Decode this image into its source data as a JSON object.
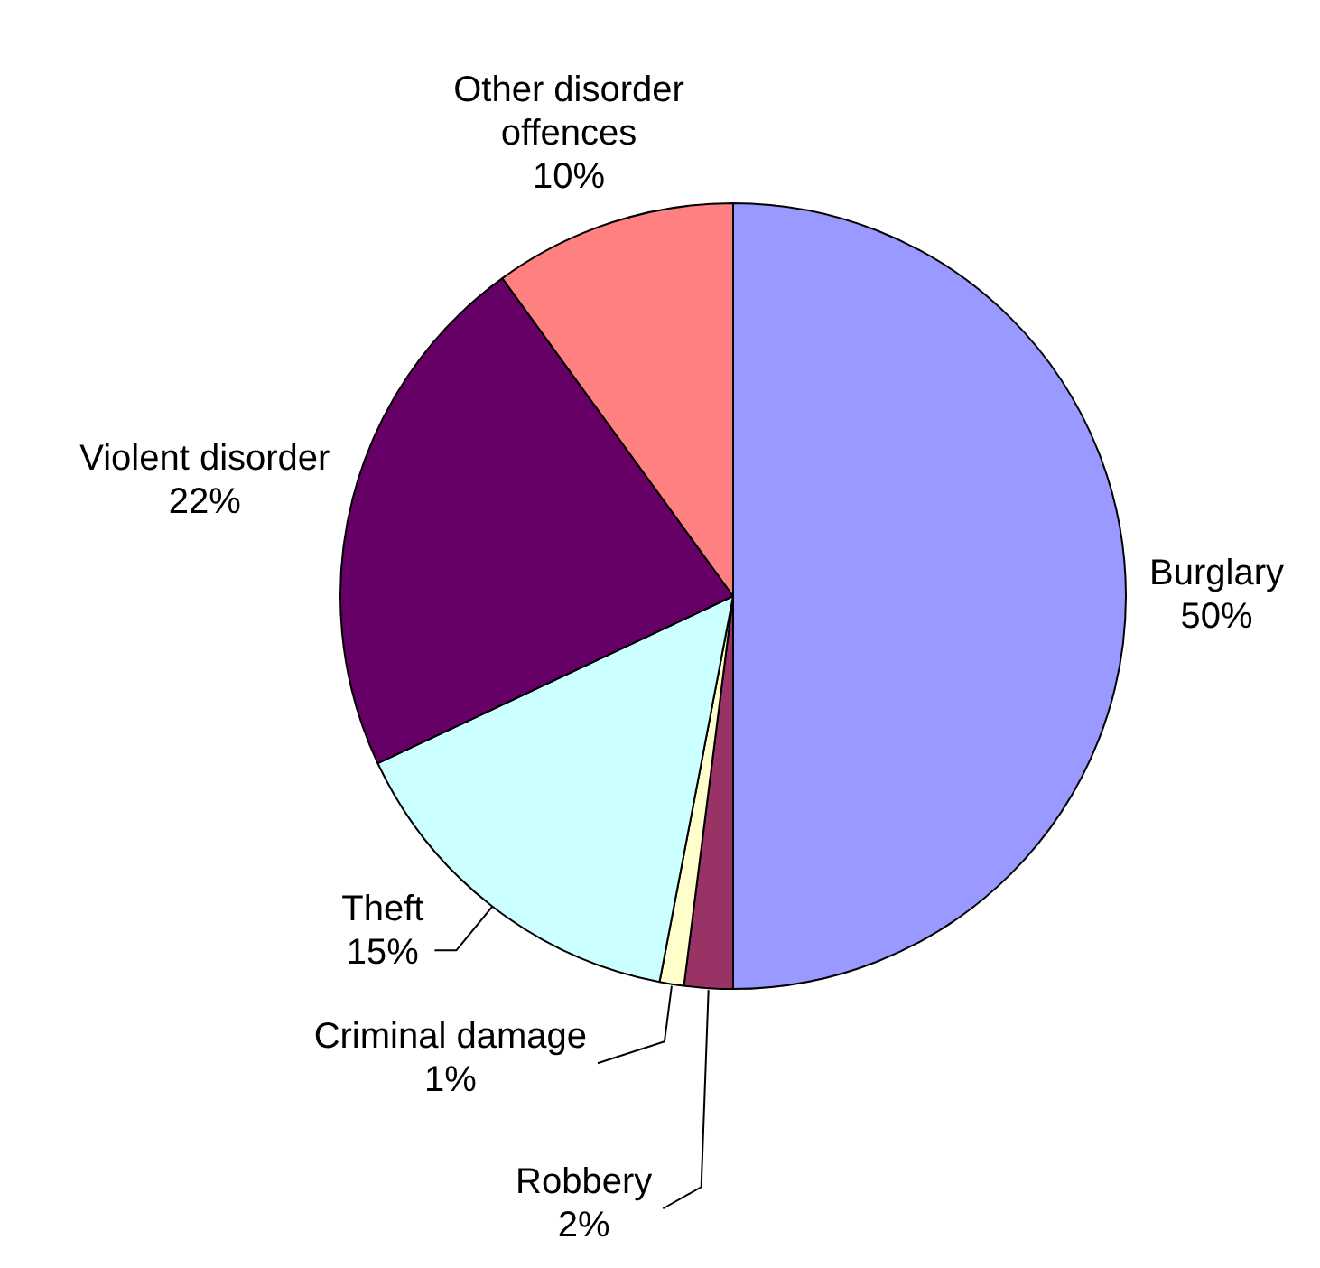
{
  "chart_data": {
    "type": "pie",
    "categories": [
      "Burglary",
      "Robbery",
      "Criminal damage",
      "Theft",
      "Violent disorder",
      "Other disorder offences"
    ],
    "values": [
      50,
      2,
      1,
      15,
      22,
      10
    ],
    "value_labels": [
      "50%",
      "2%",
      "1%",
      "15%",
      "22%",
      "10%"
    ],
    "colors": [
      "#9999ff",
      "#993366",
      "#ffffcc",
      "#ccffff",
      "#660066",
      "#ff8080"
    ],
    "legend": false
  }
}
